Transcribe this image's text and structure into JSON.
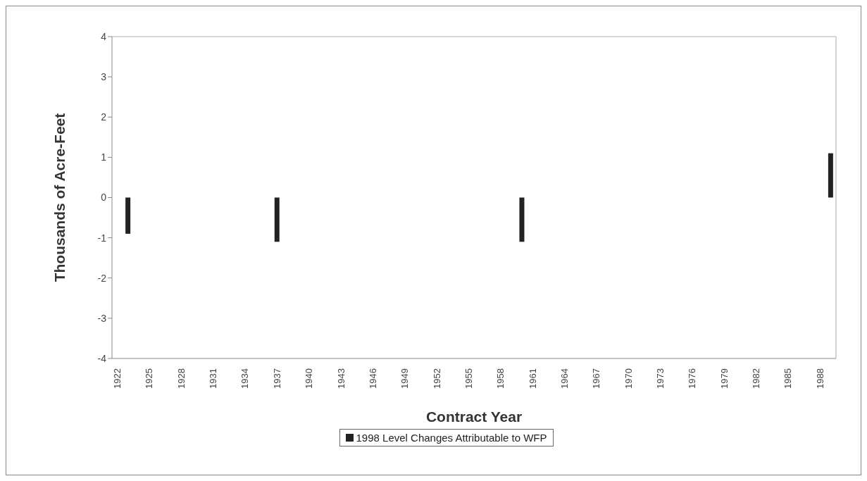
{
  "chart_data": {
    "type": "bar",
    "xlabel": "Contract Year",
    "ylabel": "Thousands of Acre-Feet",
    "categories": [
      "1922",
      null,
      null,
      "1925",
      null,
      null,
      "1928",
      null,
      null,
      "1931",
      null,
      null,
      "1934",
      null,
      null,
      "1937",
      null,
      null,
      "1940",
      null,
      null,
      "1943",
      null,
      null,
      "1946",
      null,
      null,
      "1949",
      null,
      null,
      "1952",
      null,
      null,
      "1955",
      null,
      null,
      "1958",
      null,
      null,
      "1961",
      null,
      null,
      "1964",
      null,
      null,
      "1967",
      null,
      null,
      "1970",
      null,
      null,
      "1973",
      null,
      null,
      "1976",
      null,
      null,
      "1979",
      null,
      null,
      "1982",
      null,
      null,
      "1985",
      null,
      null,
      "1988",
      null
    ],
    "series": [
      {
        "name": "1998 Level Changes Attributable to WFP",
        "color": "#222222",
        "values": [
          null,
          -0.9,
          null,
          null,
          null,
          null,
          null,
          null,
          null,
          null,
          null,
          null,
          null,
          null,
          null,
          -1.1,
          null,
          null,
          null,
          null,
          null,
          null,
          null,
          null,
          null,
          null,
          null,
          null,
          null,
          null,
          null,
          null,
          null,
          null,
          null,
          null,
          null,
          null,
          -1.1,
          null,
          null,
          null,
          null,
          null,
          null,
          null,
          null,
          null,
          null,
          null,
          null,
          null,
          null,
          null,
          null,
          null,
          null,
          null,
          null,
          null,
          null,
          null,
          null,
          null,
          null,
          null,
          null,
          1.1
        ]
      }
    ],
    "ylim": [
      -4,
      4
    ],
    "yticks": [
      -4,
      -3,
      -2,
      -1,
      0,
      1,
      2,
      3,
      4
    ],
    "grid": false,
    "legend": "bottom"
  }
}
